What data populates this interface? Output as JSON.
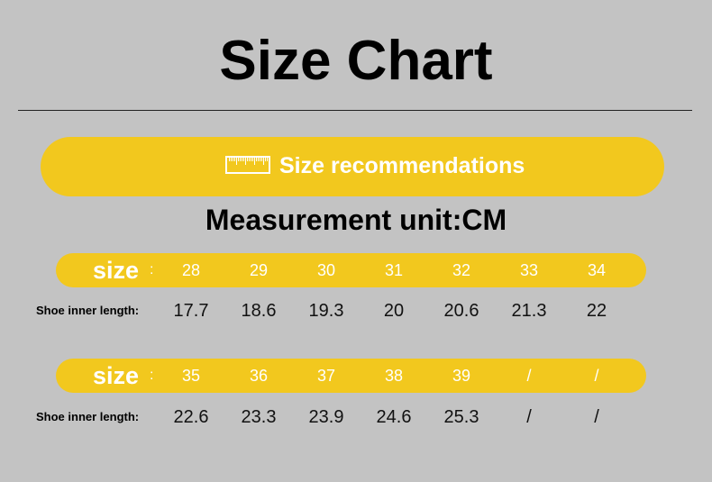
{
  "title": "Size Chart",
  "recommendation_label": "Size recommendations",
  "ruler_icon": "ruler-icon",
  "unit_label": "Measurement unit:CM",
  "colors": {
    "accent": "#f2c81e",
    "background": "#c3c3c3"
  },
  "tables": [
    {
      "size_label": "size",
      "colon": ":",
      "sizes": [
        "28",
        "29",
        "30",
        "31",
        "32",
        "33",
        "34"
      ],
      "length_label": "Shoe inner length:",
      "lengths": [
        "17.7",
        "18.6",
        "19.3",
        "20",
        "20.6",
        "21.3",
        "22"
      ]
    },
    {
      "size_label": "size",
      "colon": ":",
      "sizes": [
        "35",
        "36",
        "37",
        "38",
        "39",
        "/",
        "/"
      ],
      "length_label": "Shoe inner length:",
      "lengths": [
        "22.6",
        "23.3",
        "23.9",
        "24.6",
        "25.3",
        "/",
        "/"
      ]
    }
  ]
}
